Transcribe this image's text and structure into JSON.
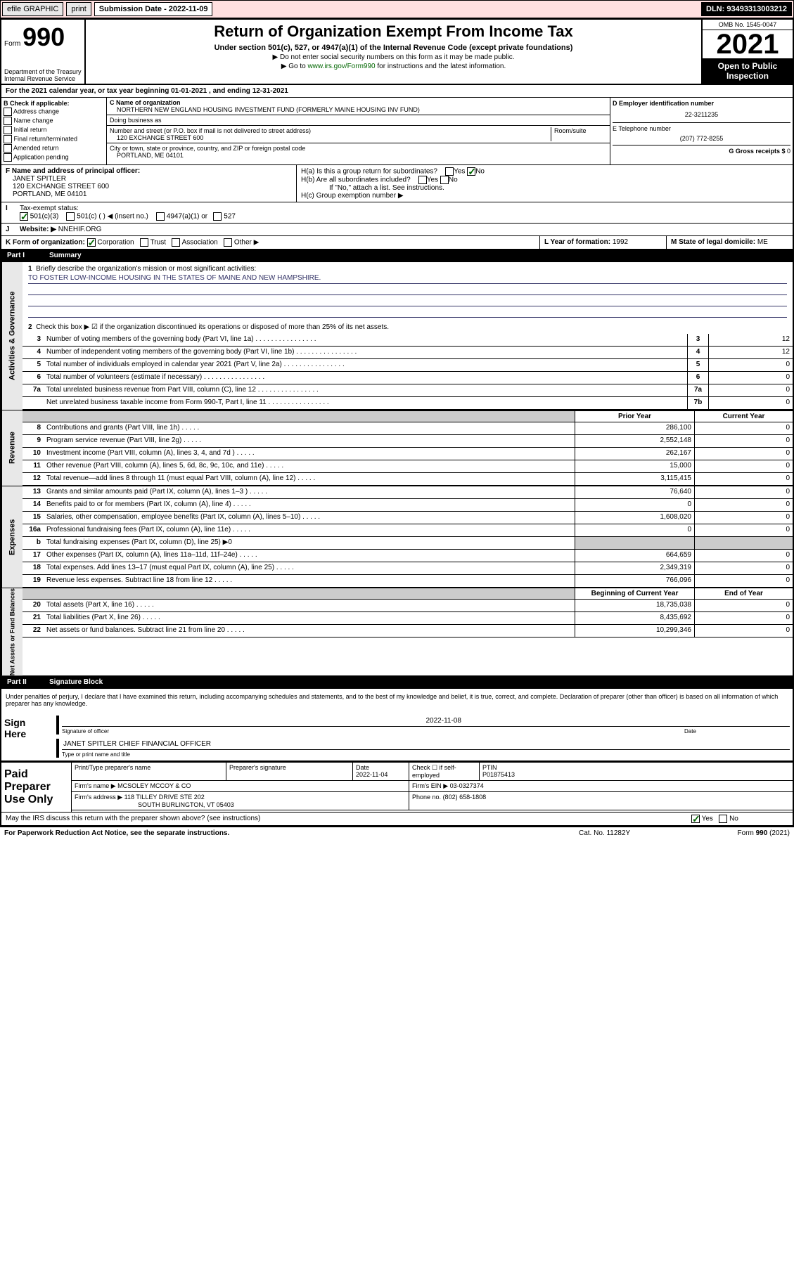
{
  "topbar": {
    "efile": "efile GRAPHIC",
    "print": "print",
    "sub_label": "Submission Date - 2022-11-09",
    "dln": "DLN: 93493313003212"
  },
  "header": {
    "form_label": "Form",
    "form_no": "990",
    "dept": "Department of the Treasury\nInternal Revenue Service",
    "title": "Return of Organization Exempt From Income Tax",
    "subtitle": "Under section 501(c), 527, or 4947(a)(1) of the Internal Revenue Code (except private foundations)",
    "note1": "▶ Do not enter social security numbers on this form as it may be made public.",
    "note2_pre": "▶ Go to ",
    "note2_link": "www.irs.gov/Form990",
    "note2_post": " for instructions and the latest information.",
    "omb": "OMB No. 1545-0047",
    "year": "2021",
    "open": "Open to Public Inspection"
  },
  "period": {
    "text": "For the 2021 calendar year, or tax year beginning 01-01-2021  , and ending 12-31-2021"
  },
  "sectionB": {
    "label": "B Check if applicable:",
    "items": [
      "Address change",
      "Name change",
      "Initial return",
      "Final return/terminated",
      "Amended return",
      "Application pending"
    ]
  },
  "sectionC": {
    "name_label": "C Name of organization",
    "name": "NORTHERN NEW ENGLAND HOUSING INVESTMENT FUND (FORMERLY MAINE HOUSING INV FUND)",
    "dba_label": "Doing business as",
    "addr_label": "Number and street (or P.O. box if mail is not delivered to street address)",
    "room_label": "Room/suite",
    "addr": "120 EXCHANGE STREET 600",
    "city_label": "City or town, state or province, country, and ZIP or foreign postal code",
    "city": "PORTLAND, ME  04101"
  },
  "sectionD": {
    "label": "D Employer identification number",
    "ein": "22-3211235",
    "tel_label": "E Telephone number",
    "tel": "(207) 772-8255",
    "gross_label": "G Gross receipts $",
    "gross": "0"
  },
  "sectionF": {
    "label": "F Name and address of principal officer:",
    "name": "JANET SPITLER",
    "addr1": "120 EXCHANGE STREET 600",
    "addr2": "PORTLAND, ME  04101"
  },
  "sectionH": {
    "a_label": "H(a)  Is this a group return for subordinates?",
    "b_label": "H(b)  Are all subordinates included?",
    "note": "If \"No,\" attach a list. See instructions.",
    "c_label": "H(c)  Group exemption number ▶"
  },
  "lineI": {
    "label": "Tax-exempt status:",
    "opt1": "501(c)(3)",
    "opt2": "501(c) (  ) ◀ (insert no.)",
    "opt3": "4947(a)(1) or",
    "opt4": "527"
  },
  "lineJ": {
    "label": "Website: ▶",
    "value": "NNEHIF.ORG"
  },
  "lineK": {
    "label": "K Form of organization:",
    "opts": [
      "Corporation",
      "Trust",
      "Association",
      "Other ▶"
    ]
  },
  "lineL": {
    "label": "L Year of formation:",
    "value": "1992"
  },
  "lineM": {
    "label": "M State of legal domicile:",
    "value": "ME"
  },
  "part1": {
    "title": "Summary",
    "q1": "Briefly describe the organization's mission or most significant activities:",
    "mission": "TO FOSTER LOW-INCOME HOUSING IN THE STATES OF MAINE AND NEW HAMPSHIRE.",
    "q2": "Check this box ▶ ☑ if the organization discontinued its operations or disposed of more than 25% of its net assets.",
    "lines_num": [
      {
        "n": "3",
        "t": "Number of voting members of the governing body (Part VI, line 1a)",
        "box": "3",
        "v": "12"
      },
      {
        "n": "4",
        "t": "Number of independent voting members of the governing body (Part VI, line 1b)",
        "box": "4",
        "v": "12"
      },
      {
        "n": "5",
        "t": "Total number of individuals employed in calendar year 2021 (Part V, line 2a)",
        "box": "5",
        "v": "0"
      },
      {
        "n": "6",
        "t": "Total number of volunteers (estimate if necessary)",
        "box": "6",
        "v": "0"
      },
      {
        "n": "7a",
        "t": "Total unrelated business revenue from Part VIII, column (C), line 12",
        "box": "7a",
        "v": "0"
      },
      {
        "n": "",
        "t": "Net unrelated business taxable income from Form 990-T, Part I, line 11",
        "box": "7b",
        "v": "0"
      }
    ],
    "col1": "Prior Year",
    "col2": "Current Year",
    "revenue": [
      {
        "n": "8",
        "t": "Contributions and grants (Part VIII, line 1h)",
        "v1": "286,100",
        "v2": "0"
      },
      {
        "n": "9",
        "t": "Program service revenue (Part VIII, line 2g)",
        "v1": "2,552,148",
        "v2": "0"
      },
      {
        "n": "10",
        "t": "Investment income (Part VIII, column (A), lines 3, 4, and 7d )",
        "v1": "262,167",
        "v2": "0"
      },
      {
        "n": "11",
        "t": "Other revenue (Part VIII, column (A), lines 5, 6d, 8c, 9c, 10c, and 11e)",
        "v1": "15,000",
        "v2": "0"
      },
      {
        "n": "12",
        "t": "Total revenue—add lines 8 through 11 (must equal Part VIII, column (A), line 12)",
        "v1": "3,115,415",
        "v2": "0"
      }
    ],
    "expenses": [
      {
        "n": "13",
        "t": "Grants and similar amounts paid (Part IX, column (A), lines 1–3 )",
        "v1": "76,640",
        "v2": "0"
      },
      {
        "n": "14",
        "t": "Benefits paid to or for members (Part IX, column (A), line 4)",
        "v1": "0",
        "v2": "0"
      },
      {
        "n": "15",
        "t": "Salaries, other compensation, employee benefits (Part IX, column (A), lines 5–10)",
        "v1": "1,608,020",
        "v2": "0"
      },
      {
        "n": "16a",
        "t": "Professional fundraising fees (Part IX, column (A), line 11e)",
        "v1": "0",
        "v2": "0"
      },
      {
        "n": "b",
        "t": "Total fundraising expenses (Part IX, column (D), line 25) ▶0",
        "v1": "",
        "v2": "",
        "shade": true
      },
      {
        "n": "17",
        "t": "Other expenses (Part IX, column (A), lines 11a–11d, 11f–24e)",
        "v1": "664,659",
        "v2": "0"
      },
      {
        "n": "18",
        "t": "Total expenses. Add lines 13–17 (must equal Part IX, column (A), line 25)",
        "v1": "2,349,319",
        "v2": "0"
      },
      {
        "n": "19",
        "t": "Revenue less expenses. Subtract line 18 from line 12",
        "v1": "766,096",
        "v2": "0"
      }
    ],
    "col3": "Beginning of Current Year",
    "col4": "End of Year",
    "net": [
      {
        "n": "20",
        "t": "Total assets (Part X, line 16)",
        "v1": "18,735,038",
        "v2": "0"
      },
      {
        "n": "21",
        "t": "Total liabilities (Part X, line 26)",
        "v1": "8,435,692",
        "v2": "0"
      },
      {
        "n": "22",
        "t": "Net assets or fund balances. Subtract line 21 from line 20",
        "v1": "10,299,346",
        "v2": "0"
      }
    ]
  },
  "vlabels": {
    "gov": "Activities & Governance",
    "rev": "Revenue",
    "exp": "Expenses",
    "net": "Net Assets or Fund Balances"
  },
  "part2": {
    "title": "Signature Block",
    "decl": "Under penalties of perjury, I declare that I have examined this return, including accompanying schedules and statements, and to the best of my knowledge and belief, it is true, correct, and complete. Declaration of preparer (other than officer) is based on all information of which preparer has any knowledge.",
    "sign_here": "Sign Here",
    "sig_label": "Signature of officer",
    "date_label": "Date",
    "date": "2022-11-08",
    "name": "JANET SPITLER  CHIEF FINANCIAL OFFICER",
    "name_label": "Type or print name and title",
    "paid": "Paid Preparer Use Only",
    "prep_name_label": "Print/Type preparer's name",
    "prep_sig_label": "Preparer's signature",
    "prep_date_label": "Date",
    "prep_date": "2022-11-04",
    "check_label": "Check ☐ if self-employed",
    "ptin_label": "PTIN",
    "ptin": "P01875413",
    "firm_name_label": "Firm's name    ▶",
    "firm_name": "MCSOLEY MCCOY & CO",
    "firm_ein_label": "Firm's EIN ▶",
    "firm_ein": "03-0327374",
    "firm_addr_label": "Firm's address ▶",
    "firm_addr1": "118 TILLEY DRIVE STE 202",
    "firm_addr2": "SOUTH BURLINGTON, VT  05403",
    "phone_label": "Phone no.",
    "phone": "(802) 658-1808",
    "may": "May the IRS discuss this return with the preparer shown above? (see instructions)",
    "yes": "Yes",
    "no": "No"
  },
  "footer": {
    "l": "For Paperwork Reduction Act Notice, see the separate instructions.",
    "c": "Cat. No. 11282Y",
    "r": "Form 990 (2021)"
  }
}
